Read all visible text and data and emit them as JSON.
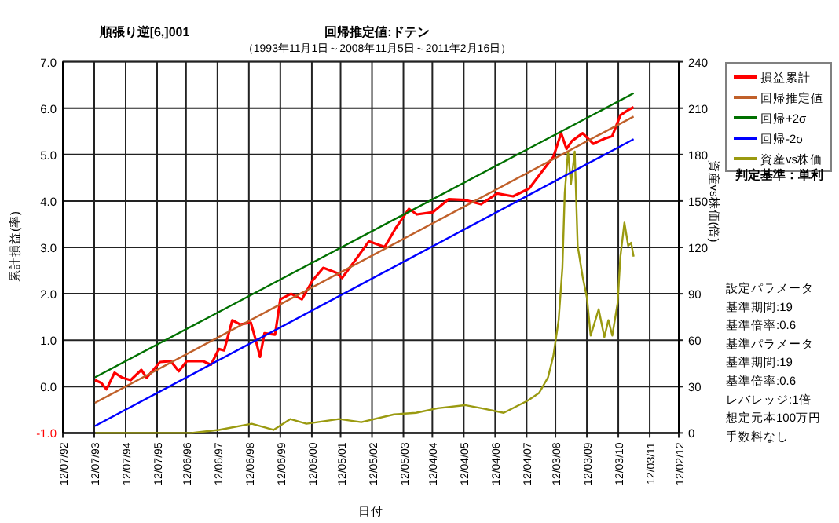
{
  "chart_data": {
    "type": "line",
    "title": "順張り逆[6,]001",
    "subtitle": "回帰推定値:ドテン",
    "xlabel": "日付",
    "ylabel": "累計損益(率)",
    "y2label": "資産vs株価(倍)",
    "annotations": [
      "（1993年11月1日～2008年11月5日～2011年2月16日）",
      "判定基準：単利",
      "設定パラメータ",
      "基準期間:19",
      "基準倍率:0.6",
      "基準パラメータ",
      "基準期間:19",
      "基準倍率:0.6",
      "レバレッジ:1倍",
      "想定元本100万円",
      "手数料なし"
    ],
    "xlim": [
      "1992-07-12",
      "2012-02-12"
    ],
    "xticks": [
      {
        "value": "1992-07-12",
        "label": "12/07/92"
      },
      {
        "value": "1993-07-12",
        "label": "12/07/93"
      },
      {
        "value": "1994-07-12",
        "label": "12/07/94"
      },
      {
        "value": "1995-07-12",
        "label": "12/07/95"
      },
      {
        "value": "1996-06-12",
        "label": "12/06/96"
      },
      {
        "value": "1997-06-12",
        "label": "12/06/97"
      },
      {
        "value": "1998-06-12",
        "label": "12/06/98"
      },
      {
        "value": "1999-06-12",
        "label": "12/06/99"
      },
      {
        "value": "2000-06-12",
        "label": "12/06/00"
      },
      {
        "value": "2001-05-12",
        "label": "12/05/01"
      },
      {
        "value": "2002-05-12",
        "label": "12/05/02"
      },
      {
        "value": "2003-05-12",
        "label": "12/05/03"
      },
      {
        "value": "2004-04-12",
        "label": "12/04/04"
      },
      {
        "value": "2005-04-12",
        "label": "12/04/05"
      },
      {
        "value": "2006-04-12",
        "label": "12/04/06"
      },
      {
        "value": "2007-04-12",
        "label": "12/04/07"
      },
      {
        "value": "2008-03-12",
        "label": "12/03/08"
      },
      {
        "value": "2009-03-12",
        "label": "12/03/09"
      },
      {
        "value": "2010-03-12",
        "label": "12/03/10"
      },
      {
        "value": "2011-03-12",
        "label": "12/03/11"
      },
      {
        "value": "2012-02-12",
        "label": "12/02/12"
      }
    ],
    "ylim": [
      -1,
      7
    ],
    "yticks": [
      {
        "value": -1,
        "label": "-1.0"
      },
      {
        "value": 0,
        "label": "0.0"
      },
      {
        "value": 1,
        "label": "1.0"
      },
      {
        "value": 2,
        "label": "2.0"
      },
      {
        "value": 3,
        "label": "3.0"
      },
      {
        "value": 4,
        "label": "4.0"
      },
      {
        "value": 5,
        "label": "5.0"
      },
      {
        "value": 6,
        "label": "6.0"
      },
      {
        "value": 7,
        "label": "7.0"
      }
    ],
    "y2lim": [
      0,
      240
    ],
    "y2ticks": [
      0,
      30,
      60,
      90,
      120,
      150,
      180,
      210,
      240
    ],
    "grid": true,
    "legend": "top right",
    "marker": "none",
    "line_style": "solid",
    "series": [
      {
        "name": "損益累計",
        "color": "#ff0000",
        "x": [
          "1993-07-20",
          "1993-10-01",
          "1993-12-01",
          "1994-03-05",
          "1994-06-05",
          "1994-09-08",
          "1995-01-10",
          "1995-03-13",
          "1995-08-14",
          "1995-12-16",
          "1996-03-20",
          "1996-06-21",
          "1996-12-24",
          "1997-03-28",
          "1997-06-28",
          "1997-08-29",
          "1997-12-01",
          "1998-03-02",
          "1998-07-04",
          "1998-08-25",
          "1998-10-19",
          "1998-12-10",
          "1999-04-12",
          "1999-06-12",
          "1999-10-15",
          "2000-02-17",
          "2000-06-19",
          "2000-10-23",
          "2001-03-28",
          "2001-05-29",
          "2001-11-01",
          "2002-04-05",
          "2002-10-07",
          "2003-02-10",
          "2003-07-15",
          "2003-10-16",
          "2004-04-20",
          "2004-10-19",
          "2005-04-30",
          "2005-10-30",
          "2006-05-05",
          "2006-11-06",
          "2007-05-12",
          "2007-11-13",
          "2008-02-17",
          "2008-05-17",
          "2008-07-19",
          "2008-09-19",
          "2009-01-22",
          "2009-05-25",
          "2009-09-30",
          "2010-01-01",
          "2010-04-05",
          "2010-07-05",
          "2010-09-06"
        ],
        "values": [
          0.14,
          0.08,
          -0.06,
          0.3,
          0.19,
          0.14,
          0.36,
          0.19,
          0.53,
          0.55,
          0.33,
          0.55,
          0.55,
          0.47,
          0.81,
          0.78,
          1.43,
          1.34,
          1.38,
          1.04,
          0.64,
          1.15,
          1.12,
          1.88,
          2.0,
          1.88,
          2.28,
          2.56,
          2.45,
          2.34,
          2.73,
          3.13,
          3.01,
          3.41,
          3.83,
          3.71,
          3.76,
          4.04,
          4.02,
          3.93,
          4.16,
          4.1,
          4.27,
          4.72,
          4.95,
          5.46,
          5.12,
          5.29,
          5.46,
          5.23,
          5.34,
          5.4,
          5.85,
          5.96,
          6.02
        ]
      },
      {
        "name": "回帰推定値",
        "color": "#c0602a",
        "x": [
          "1993-07-20",
          "2010-09-06"
        ],
        "values": [
          -0.35,
          5.82
        ]
      },
      {
        "name": "回帰+2σ",
        "color": "#007000",
        "x": [
          "1993-07-20",
          "2010-09-06"
        ],
        "values": [
          0.2,
          6.32
        ]
      },
      {
        "name": "回帰-2σ",
        "color": "#0000ff",
        "x": [
          "1993-07-20",
          "2010-09-06"
        ],
        "values": [
          -0.85,
          5.33
        ]
      },
      {
        "name": "資産vs株価",
        "color": "#9a9a10",
        "axis": "y2",
        "x": [
          "1993-07-25",
          "1995-07-30",
          "1996-08-15",
          "1997-06-28",
          "1998-07-15",
          "1999-03-25",
          "1999-10-05",
          "2000-04-10",
          "2001-04-25",
          "2002-01-08",
          "2003-01-22",
          "2003-10-05",
          "2004-06-12",
          "2005-04-25",
          "2005-11-05",
          "2006-07-20",
          "2007-04-28",
          "2007-09-05",
          "2007-12-17",
          "2008-02-17",
          "2008-04-18",
          "2008-06-01",
          "2008-06-28",
          "2008-08-05",
          "2008-09-08",
          "2008-10-22",
          "2008-11-25",
          "2009-01-22",
          "2009-03-14",
          "2009-04-25",
          "2009-07-27",
          "2009-10-01",
          "2009-11-17",
          "2010-01-01",
          "2010-03-04",
          "2010-04-05",
          "2010-05-22",
          "2010-07-05",
          "2010-08-08",
          "2010-09-06"
        ],
        "values": [
          0,
          0,
          0,
          2,
          6,
          2,
          9,
          6,
          9,
          7,
          12,
          13,
          16,
          18,
          16,
          13,
          21,
          26,
          36,
          50,
          73,
          107,
          155,
          182,
          161,
          182,
          121,
          101,
          87,
          63,
          80,
          62,
          73,
          63,
          84,
          114,
          136,
          121,
          123,
          114
        ]
      }
    ]
  }
}
